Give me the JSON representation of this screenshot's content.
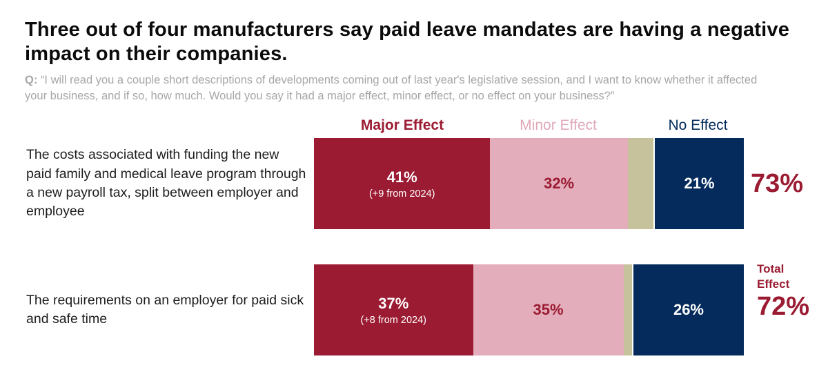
{
  "page": {
    "title": "Three out of four manufacturers say paid leave mandates are having a negative impact on their companies.",
    "question_prefix": "Q:",
    "question_text": "“I will read you a couple short descriptions of developments coming out of last year's legislative session, and I want to know whether it affected your business, and if so, how much. Would you say it had a major effect, minor effect, or no effect on your business?”"
  },
  "colors": {
    "major": "#9b1b32",
    "minor": "#e4adbb",
    "unlabeled": "#c6c29b",
    "no_effect": "#042b5c",
    "title_text": "#0b0b0b",
    "question_text": "#a7a7a7",
    "minor_header_text": "#dfa9b8"
  },
  "chart_data": {
    "type": "bar",
    "subtype": "horizontal-stacked",
    "column_headers": [
      {
        "label": "Major Effect"
      },
      {
        "label": "Minor Effect"
      },
      {
        "label": "No Effect"
      }
    ],
    "total_effect_label_line1": "Total",
    "total_effect_label_line2": "Effect",
    "axis_range_percent": [
      0,
      100
    ],
    "rows": [
      {
        "label": "The costs associated with funding the new paid family and medical leave program through a new payroll tax, split between employer and employee",
        "segments": [
          {
            "name": "major_effect",
            "value": 41,
            "display": "41%",
            "note": "(+9 from 2024)"
          },
          {
            "name": "minor_effect",
            "value": 32,
            "display": "32%"
          },
          {
            "name": "unlabeled",
            "value": 6,
            "display": ""
          },
          {
            "name": "no_effect",
            "value": 21,
            "display": "21%"
          }
        ],
        "total_display": "73%"
      },
      {
        "label": "The requirements on an employer for paid sick and safe time",
        "segments": [
          {
            "name": "major_effect",
            "value": 37,
            "display": "37%",
            "note": "(+8 from 2024)"
          },
          {
            "name": "minor_effect",
            "value": 35,
            "display": "35%"
          },
          {
            "name": "unlabeled",
            "value": 2,
            "display": ""
          },
          {
            "name": "no_effect",
            "value": 26,
            "display": "26%"
          }
        ],
        "total_display": "72%"
      }
    ]
  }
}
